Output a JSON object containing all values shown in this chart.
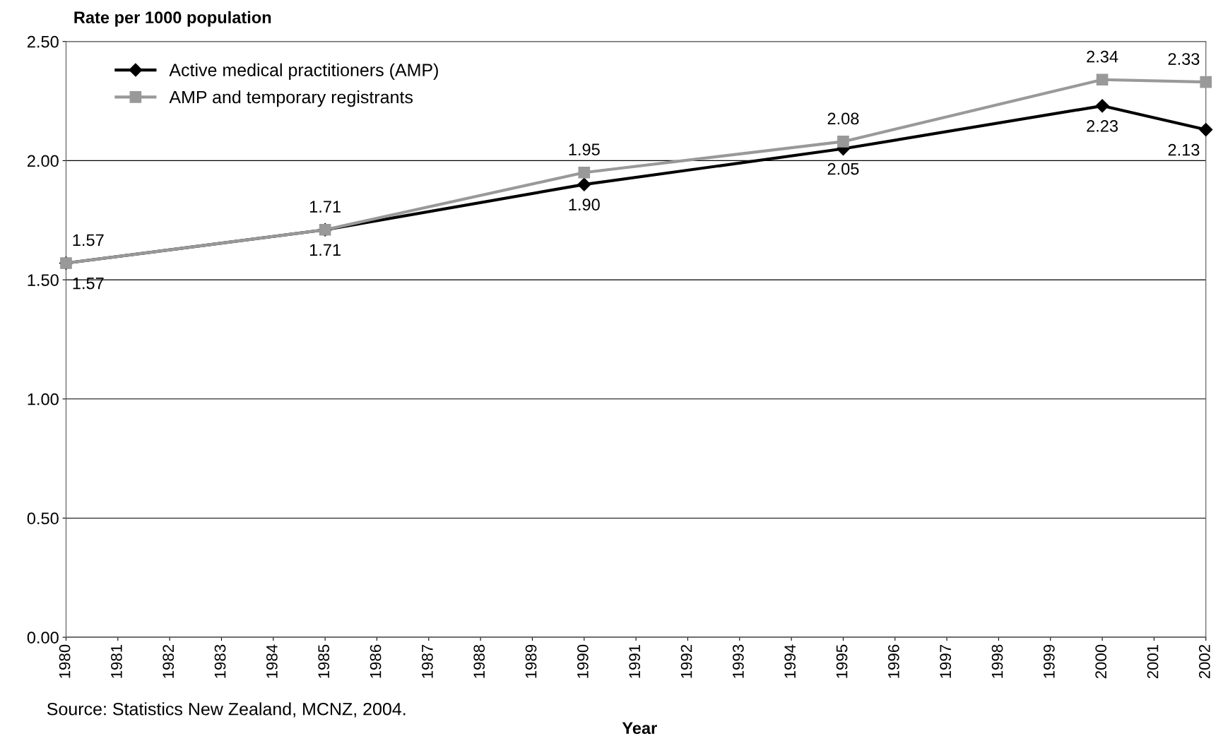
{
  "chart_data": {
    "type": "line",
    "ylabel": "Rate per 1000 population",
    "xlabel": "Year",
    "x": [
      1980,
      1985,
      1990,
      1995,
      2000,
      2002
    ],
    "series": [
      {
        "name": "Active medical practitioners (AMP)",
        "color": "#000000",
        "marker": "diamond",
        "values": [
          1.57,
          1.71,
          1.9,
          2.05,
          2.23,
          2.13
        ],
        "value_labels": [
          "1.57",
          "1.71",
          "1.90",
          "2.05",
          "2.23",
          "2.13"
        ]
      },
      {
        "name": "AMP and temporary registrants",
        "color": "#999999",
        "marker": "square",
        "values": [
          1.57,
          1.71,
          1.95,
          2.08,
          2.34,
          2.33
        ],
        "value_labels": [
          "1.57",
          "1.71",
          "1.95",
          "2.08",
          "2.34",
          "2.33"
        ]
      }
    ],
    "xlim": [
      1980,
      2002
    ],
    "xticks": [
      1980,
      1981,
      1982,
      1983,
      1984,
      1985,
      1986,
      1987,
      1988,
      1989,
      1990,
      1991,
      1992,
      1993,
      1994,
      1995,
      1996,
      1997,
      1998,
      1999,
      2000,
      2001,
      2002
    ],
    "ylim": [
      0,
      2.5
    ],
    "yticks": [
      {
        "value": 0,
        "label": "0.00"
      },
      {
        "value": 0.5,
        "label": "0.50"
      },
      {
        "value": 1,
        "label": "1.00"
      },
      {
        "value": 1.5,
        "label": "1.50"
      },
      {
        "value": 2,
        "label": "2.00"
      },
      {
        "value": 2.5,
        "label": "2.50"
      }
    ],
    "grid": "y",
    "legend": "top left",
    "line_style": "solid",
    "annotations": [
      "Source: Statistics New Zealand, MCNZ, 2004."
    ]
  }
}
